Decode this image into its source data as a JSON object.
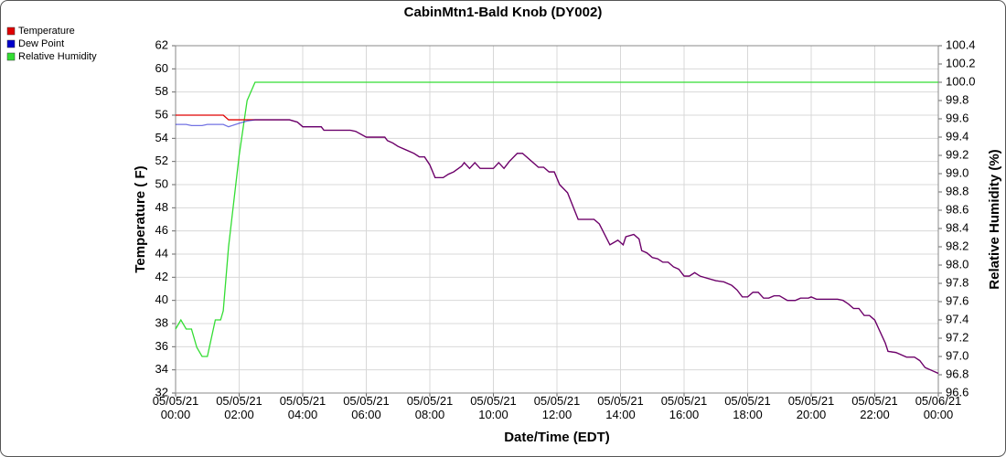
{
  "chart_data": {
    "type": "line",
    "title": "CabinMtn1-Bald Knob (DY002)",
    "xlabel": "Date/Time (EDT)",
    "ylabel": "Temperature ( F)",
    "y2label": "Relative Humidity (%)",
    "legend": "top-left",
    "grid": true,
    "x": [
      "05/05/21 00:00",
      "05/05/21 00:10",
      "05/05/21 00:20",
      "05/05/21 00:30",
      "05/05/21 00:40",
      "05/05/21 00:50",
      "05/05/21 01:00",
      "05/05/21 01:15",
      "05/05/21 01:25",
      "05/05/21 01:30",
      "05/05/21 01:40",
      "05/05/21 02:00",
      "05/05/21 02:15",
      "05/05/21 02:30",
      "05/05/21 03:35",
      "05/05/21 03:50",
      "05/05/21 04:00",
      "05/05/21 04:35",
      "05/05/21 04:40",
      "05/05/21 05:30",
      "05/05/21 05:40",
      "05/05/21 06:00",
      "05/05/21 06:35",
      "05/05/21 06:40",
      "05/05/21 06:50",
      "05/05/21 07:00",
      "05/05/21 07:15",
      "05/05/21 07:30",
      "05/05/21 07:40",
      "05/05/21 07:50",
      "05/05/21 08:00",
      "05/05/21 08:10",
      "05/05/21 08:25",
      "05/05/21 08:35",
      "05/05/21 08:45",
      "05/05/21 09:00",
      "05/05/21 09:05",
      "05/05/21 09:15",
      "05/05/21 09:25",
      "05/05/21 09:35",
      "05/05/21 10:00",
      "05/05/21 10:10",
      "05/05/21 10:20",
      "05/05/21 10:30",
      "05/05/21 10:45",
      "05/05/21 10:55",
      "05/05/21 11:10",
      "05/05/21 11:25",
      "05/05/21 11:35",
      "05/05/21 11:45",
      "05/05/21 11:55",
      "05/05/21 12:05",
      "05/05/21 12:20",
      "05/05/21 12:40",
      "05/05/21 13:10",
      "05/05/21 13:20",
      "05/05/21 13:40",
      "05/05/21 13:55",
      "05/05/21 14:05",
      "05/05/21 14:10",
      "05/05/21 14:25",
      "05/05/21 14:35",
      "05/05/21 14:40",
      "05/05/21 14:50",
      "05/05/21 15:00",
      "05/05/21 15:10",
      "05/05/21 15:20",
      "05/05/21 15:30",
      "05/05/21 15:40",
      "05/05/21 15:50",
      "05/05/21 16:00",
      "05/05/21 16:10",
      "05/05/21 16:20",
      "05/05/21 16:30",
      "05/05/21 16:45",
      "05/05/21 17:00",
      "05/05/21 17:15",
      "05/05/21 17:30",
      "05/05/21 17:40",
      "05/05/21 17:50",
      "05/05/21 18:00",
      "05/05/21 18:10",
      "05/05/21 18:20",
      "05/05/21 18:30",
      "05/05/21 18:40",
      "05/05/21 18:50",
      "05/05/21 19:00",
      "05/05/21 19:15",
      "05/05/21 19:30",
      "05/05/21 19:40",
      "05/05/21 19:55",
      "05/05/21 20:00",
      "05/05/21 20:10",
      "05/05/21 20:50",
      "05/05/21 21:00",
      "05/05/21 21:10",
      "05/05/21 21:20",
      "05/05/21 21:30",
      "05/05/21 21:40",
      "05/05/21 21:50",
      "05/05/21 22:00",
      "05/05/21 22:10",
      "05/05/21 22:20",
      "05/05/21 22:25",
      "05/05/21 22:40",
      "05/05/21 23:00",
      "05/05/21 23:15",
      "05/05/21 23:25",
      "05/05/21 23:35",
      "05/05/21 23:50",
      "05/06/21 00:00"
    ],
    "xlim": [
      "05/05/21 00:00",
      "05/06/21 00:00"
    ],
    "xticks": [
      "05/05/21 00:00",
      "05/05/21 02:00",
      "05/05/21 04:00",
      "05/05/21 06:00",
      "05/05/21 08:00",
      "05/05/21 10:00",
      "05/05/21 12:00",
      "05/05/21 14:00",
      "05/05/21 16:00",
      "05/05/21 18:00",
      "05/05/21 20:00",
      "05/05/21 22:00",
      "05/06/21 00:00"
    ],
    "ylim": [
      32,
      62
    ],
    "yticks": [
      32,
      34,
      36,
      38,
      40,
      42,
      44,
      46,
      48,
      50,
      52,
      54,
      56,
      58,
      60,
      62
    ],
    "y2lim": [
      96.6,
      100.4
    ],
    "y2ticks": [
      96.6,
      96.8,
      {
        "value": 97,
        "label": "97.0"
      },
      97.2,
      97.4,
      97.6,
      97.8,
      {
        "value": 98,
        "label": "98.0"
      },
      98.2,
      98.4,
      98.6,
      98.8,
      {
        "value": 99,
        "label": "99.0"
      },
      99.2,
      99.4,
      99.6,
      99.8,
      {
        "value": 100,
        "label": "100.0"
      },
      100.2,
      100.4
    ],
    "series": [
      {
        "name": "Temperature",
        "color": "#e00000",
        "values": [
          56,
          56,
          56,
          56,
          56,
          56,
          56,
          56,
          56,
          56,
          55.6,
          55.6,
          55.6,
          55.6,
          55.6,
          55.4,
          55.0,
          55.0,
          54.7,
          54.7,
          54.6,
          54.1,
          54.1,
          53.8,
          53.6,
          53.3,
          53.0,
          52.7,
          52.4,
          52.4,
          51.7,
          50.6,
          50.6,
          50.9,
          51.1,
          51.6,
          51.9,
          51.4,
          51.9,
          51.4,
          51.4,
          51.9,
          51.4,
          52.0,
          52.7,
          52.7,
          52.1,
          51.5,
          51.5,
          51.1,
          51.1,
          50.0,
          49.3,
          47.0,
          47.0,
          46.6,
          44.8,
          45.2,
          44.8,
          45.5,
          45.7,
          45.3,
          44.3,
          44.1,
          43.7,
          43.6,
          43.3,
          43.3,
          42.9,
          42.7,
          42.1,
          42.1,
          42.4,
          42.1,
          41.9,
          41.7,
          41.6,
          41.3,
          40.9,
          40.3,
          40.3,
          40.7,
          40.7,
          40.2,
          40.2,
          40.4,
          40.4,
          40.0,
          40.0,
          40.2,
          40.2,
          40.3,
          40.1,
          40.1,
          40.0,
          39.7,
          39.3,
          39.3,
          38.7,
          38.7,
          38.3,
          37.3,
          36.3,
          35.6,
          35.5,
          35.1,
          35.1,
          34.8,
          34.2,
          33.9,
          33.7
        ]
      },
      {
        "name": "Dew Point",
        "color": "#0000cc",
        "values": [
          55.2,
          55.2,
          55.2,
          55.1,
          55.1,
          55.1,
          55.2,
          55.2,
          55.2,
          55.2,
          55.0,
          55.3,
          55.5,
          55.6,
          55.6,
          55.4,
          55.0,
          55.0,
          54.7,
          54.7,
          54.6,
          54.1,
          54.1,
          53.8,
          53.6,
          53.3,
          53.0,
          52.7,
          52.4,
          52.4,
          51.7,
          50.6,
          50.6,
          50.9,
          51.1,
          51.6,
          51.9,
          51.4,
          51.9,
          51.4,
          51.4,
          51.9,
          51.4,
          52.0,
          52.7,
          52.7,
          52.1,
          51.5,
          51.5,
          51.1,
          51.1,
          50.0,
          49.3,
          47.0,
          47.0,
          46.6,
          44.8,
          45.2,
          44.8,
          45.5,
          45.7,
          45.3,
          44.3,
          44.1,
          43.7,
          43.6,
          43.3,
          43.3,
          42.9,
          42.7,
          42.1,
          42.1,
          42.4,
          42.1,
          41.9,
          41.7,
          41.6,
          41.3,
          40.9,
          40.3,
          40.3,
          40.7,
          40.7,
          40.2,
          40.2,
          40.4,
          40.4,
          40.0,
          40.0,
          40.2,
          40.2,
          40.3,
          40.1,
          40.1,
          40.0,
          39.7,
          39.3,
          39.3,
          38.7,
          38.7,
          38.3,
          37.3,
          36.3,
          35.6,
          35.5,
          35.1,
          35.1,
          34.8,
          34.2,
          33.9,
          33.7
        ]
      },
      {
        "name": "Relative Humidity",
        "color": "#33dd33",
        "axis": "y2",
        "values": [
          97.3,
          97.4,
          97.3,
          97.3,
          97.1,
          97.0,
          97.0,
          97.4,
          97.4,
          97.5,
          98.2,
          99.2,
          99.8,
          100,
          100,
          100,
          100,
          100,
          100,
          100,
          100,
          100,
          100,
          100,
          100,
          100,
          100,
          100,
          100,
          100,
          100,
          100,
          100,
          100,
          100,
          100,
          100,
          100,
          100,
          100,
          100,
          100,
          100,
          100,
          100,
          100,
          100,
          100,
          100,
          100,
          100,
          100,
          100,
          100,
          100,
          100,
          100,
          100,
          100,
          100,
          100,
          100,
          100,
          100,
          100,
          100,
          100,
          100,
          100,
          100,
          100,
          100,
          100,
          100,
          100,
          100,
          100,
          100,
          100,
          100,
          100,
          100,
          100,
          100,
          100,
          100,
          100,
          100,
          100,
          100,
          100,
          100,
          100,
          100,
          100,
          100,
          100,
          100,
          100,
          100,
          100,
          100,
          100,
          100,
          100,
          100,
          100,
          100,
          100,
          100,
          100
        ]
      }
    ]
  }
}
